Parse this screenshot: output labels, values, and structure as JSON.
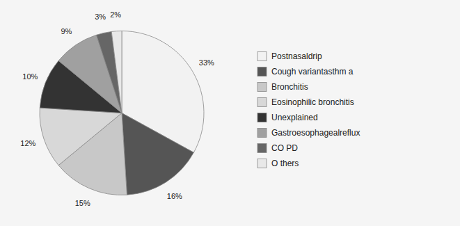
{
  "chart_data": {
    "type": "pie",
    "categories": [
      "Postnasaldrip",
      "Cough variantasthm a",
      "Bronchitis",
      "Eosinophilic bronchitis",
      "Unexplained",
      "Gastroesophagealreflux",
      "CO PD",
      "O thers"
    ],
    "values": [
      33,
      16,
      15,
      12,
      10,
      9,
      3,
      2
    ],
    "value_labels": [
      "33%",
      "16%",
      "15%",
      "12%",
      "10%",
      "9%",
      "3%",
      "2%"
    ],
    "colors": [
      "#f2f2f2",
      "#555555",
      "#c8c8c8",
      "#d8d8d8",
      "#333333",
      "#a0a0a0",
      "#666666",
      "#e8e8e8"
    ],
    "data_labels": true,
    "legend": "right"
  }
}
